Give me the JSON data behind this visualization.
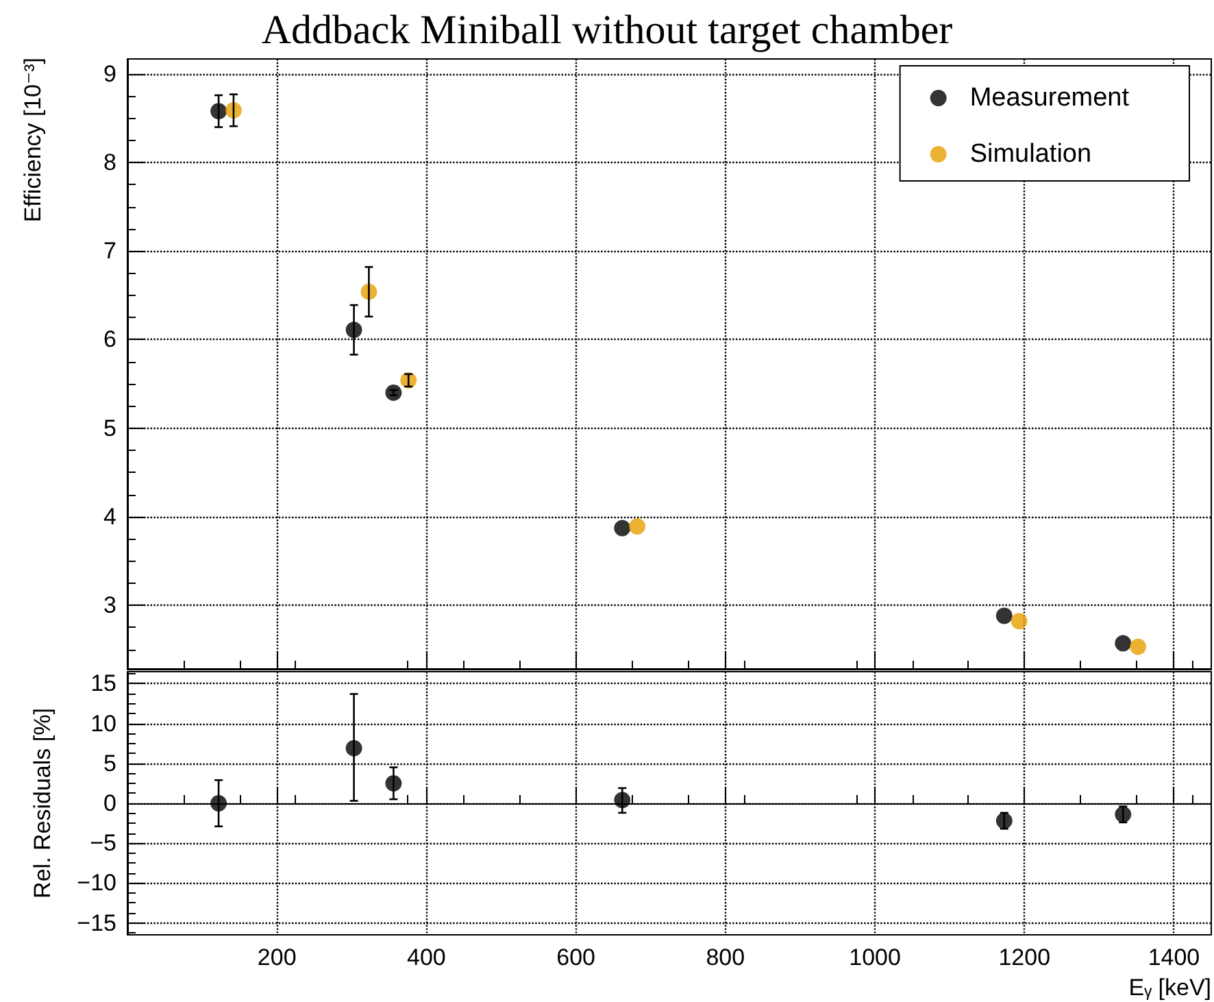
{
  "chart_data": [
    {
      "type": "scatter",
      "title": "Addback Miniball without target chamber",
      "ylabel": "Efficiency [10⁻³]",
      "xlim": [
        0,
        1450
      ],
      "xticks": [
        200,
        400,
        600,
        800,
        1000,
        1200,
        1400
      ],
      "ylim": [
        2.28,
        9.17
      ],
      "yticks": [
        3,
        4,
        5,
        6,
        7,
        8,
        9
      ],
      "tick_labels": "y",
      "grid": true,
      "legend": "top right",
      "marker": "circle",
      "series": [
        {
          "name": "Measurement",
          "color": "#000000",
          "x": [
            122,
            303,
            356,
            662,
            1173,
            1332
          ],
          "values": [
            8.58,
            6.11,
            5.4,
            3.87,
            2.88,
            2.57
          ],
          "errors": [
            0.18,
            0.28,
            0.03,
            null,
            null,
            null
          ]
        },
        {
          "name": "Simulation",
          "color": "#e69f00",
          "x": [
            142,
            323,
            376,
            682,
            1193,
            1352
          ],
          "values": [
            8.59,
            6.54,
            5.54,
            3.89,
            2.82,
            2.53
          ],
          "errors": [
            0.18,
            0.28,
            0.07,
            null,
            null,
            null
          ]
        }
      ]
    },
    {
      "type": "scatter",
      "xlabel": "Eᵧ [keV]",
      "ylabel": "Rel. Residuals [%]",
      "xlim": [
        0,
        1450
      ],
      "xticks": [
        200,
        400,
        600,
        800,
        1000,
        1200,
        1400
      ],
      "ylim": [
        -16.5,
        16.5
      ],
      "yticks": [
        -15,
        -10,
        -5,
        0,
        5,
        10,
        15
      ],
      "grid": true,
      "marker": "circle",
      "series": [
        {
          "color": "#000000",
          "x": [
            122,
            303,
            356,
            662,
            1173,
            1332
          ],
          "values": [
            0,
            6.9,
            2.5,
            0.4,
            -2.2,
            -1.4
          ],
          "errors": [
            2.9,
            [
              0.3,
              13.7
            ],
            [
              0.5,
              4.5
            ],
            [
              -1.2,
              1.9
            ],
            [
              -3.2,
              -1.2
            ],
            [
              -2.4,
              -0.4
            ]
          ]
        }
      ]
    }
  ]
}
